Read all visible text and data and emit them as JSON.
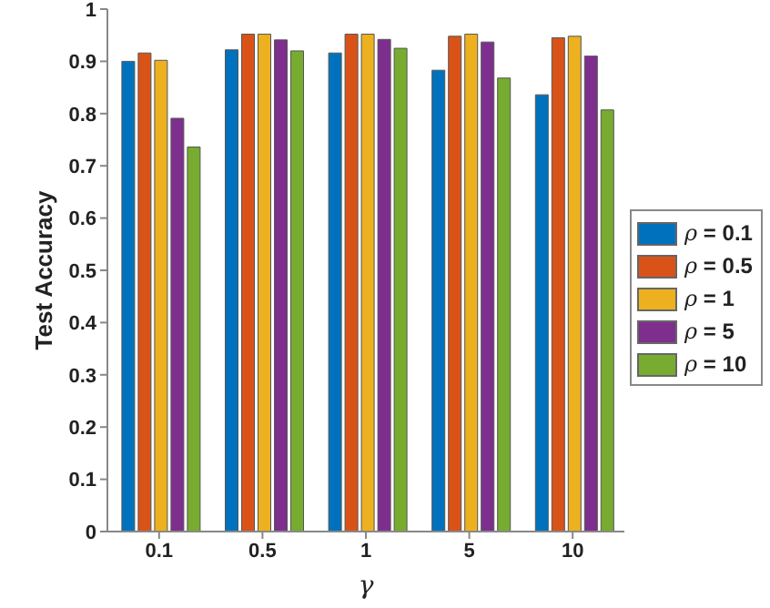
{
  "chart_data": {
    "type": "bar",
    "xlabel": "γ",
    "ylabel": "Test Accuracy",
    "categories": [
      "0.1",
      "0.5",
      "1",
      "5",
      "10"
    ],
    "series": [
      {
        "name": "ρ = 0.1",
        "color": "#0072bd",
        "values": [
          0.9,
          0.922,
          0.916,
          0.883,
          0.836
        ]
      },
      {
        "name": "ρ = 0.5",
        "color": "#d95319",
        "values": [
          0.916,
          0.952,
          0.952,
          0.948,
          0.945
        ]
      },
      {
        "name": "ρ = 1",
        "color": "#edb120",
        "values": [
          0.902,
          0.952,
          0.952,
          0.952,
          0.948
        ]
      },
      {
        "name": "ρ = 5",
        "color": "#7e2f8e",
        "values": [
          0.791,
          0.941,
          0.942,
          0.937,
          0.91
        ]
      },
      {
        "name": "ρ = 10",
        "color": "#77ac30",
        "values": [
          0.736,
          0.92,
          0.925,
          0.868,
          0.807
        ]
      }
    ],
    "ylim": [
      0,
      1
    ],
    "yticks": [
      0,
      0.1,
      0.2,
      0.3,
      0.4,
      0.5,
      0.6,
      0.7,
      0.8,
      0.9,
      1
    ],
    "grid": false,
    "legend": "right"
  }
}
